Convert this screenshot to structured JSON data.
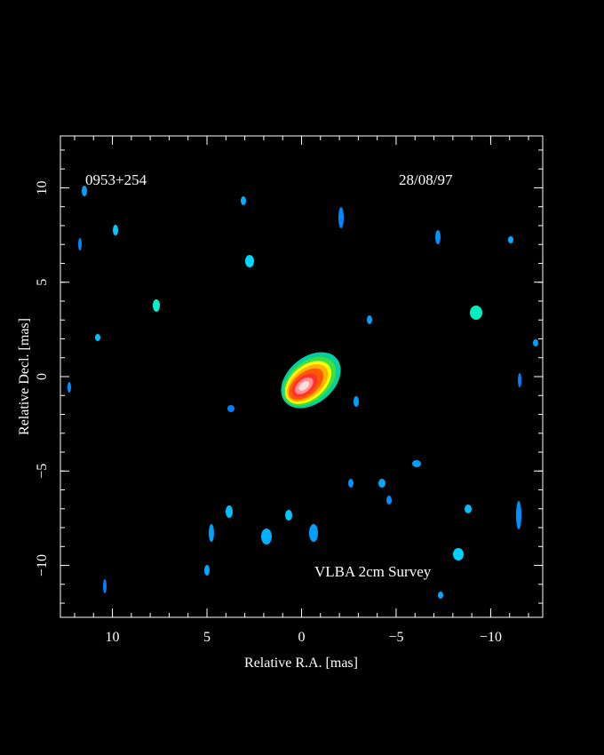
{
  "chart_data": {
    "type": "image",
    "annotations": [
      "0953+254",
      "28/08/97",
      "VLBA 2cm Survey"
    ],
    "xlabel": "Relative R.A. [mas]",
    "ylabel": "Relative Decl. [mas]",
    "xlim": [
      12.75,
      -12.75
    ],
    "ylim": [
      -12.75,
      12.75
    ],
    "xticks": [
      10,
      5,
      0,
      {
        "value": -5,
        "label": "−5"
      },
      {
        "value": -10,
        "label": "−10"
      }
    ],
    "yticks": [
      {
        "value": -10,
        "label": "−10"
      },
      {
        "value": -5,
        "label": "−5"
      },
      0,
      5,
      10
    ]
  }
}
